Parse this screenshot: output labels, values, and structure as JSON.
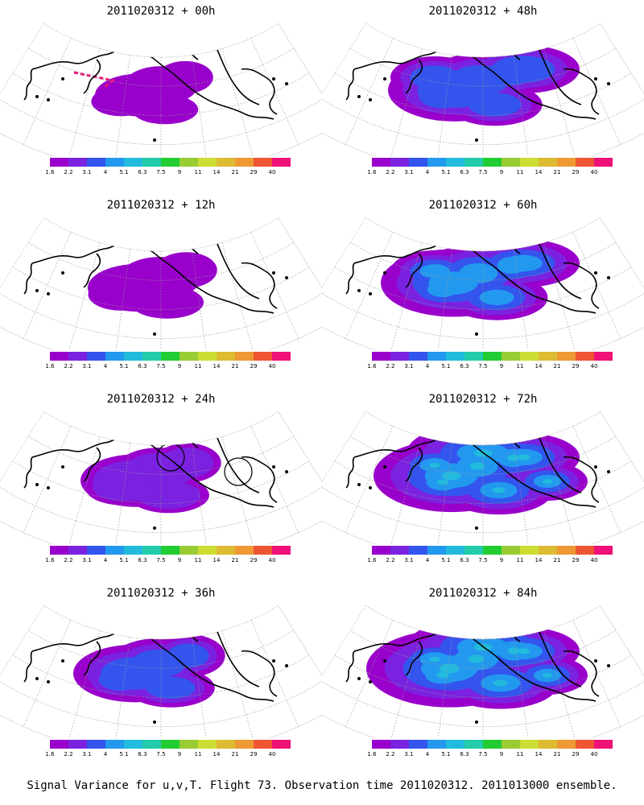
{
  "footer": "Signal Variance for u,v,T. Flight 73. Observation time 2011020312. 2011013000 ensemble.",
  "colorbar": {
    "labels": [
      "1.6",
      "2.2",
      "3.1",
      "4",
      "5.1",
      "6.3",
      "7.5",
      "9",
      "11",
      "14",
      "21",
      "29",
      "40"
    ],
    "colors": [
      "#9900cc",
      "#7a22e0",
      "#3355ee",
      "#2299ee",
      "#22bbdd",
      "#22ccaa",
      "#22cc33",
      "#99cc33",
      "#ccdd33",
      "#ddbb33",
      "#ee9933",
      "#ee5533",
      "#ee1177"
    ]
  },
  "panels": [
    {
      "title": "2011020312 + 00h",
      "level": 0
    },
    {
      "title": "2011020312 + 48h",
      "level": 4
    },
    {
      "title": "2011020312 + 12h",
      "level": 1
    },
    {
      "title": "2011020312 + 60h",
      "level": 5
    },
    {
      "title": "2011020312 + 24h",
      "level": 2
    },
    {
      "title": "2011020312 + 72h",
      "level": 6
    },
    {
      "title": "2011020312 + 36h",
      "level": 3
    },
    {
      "title": "2011020312 + 84h",
      "level": 7
    }
  ]
}
